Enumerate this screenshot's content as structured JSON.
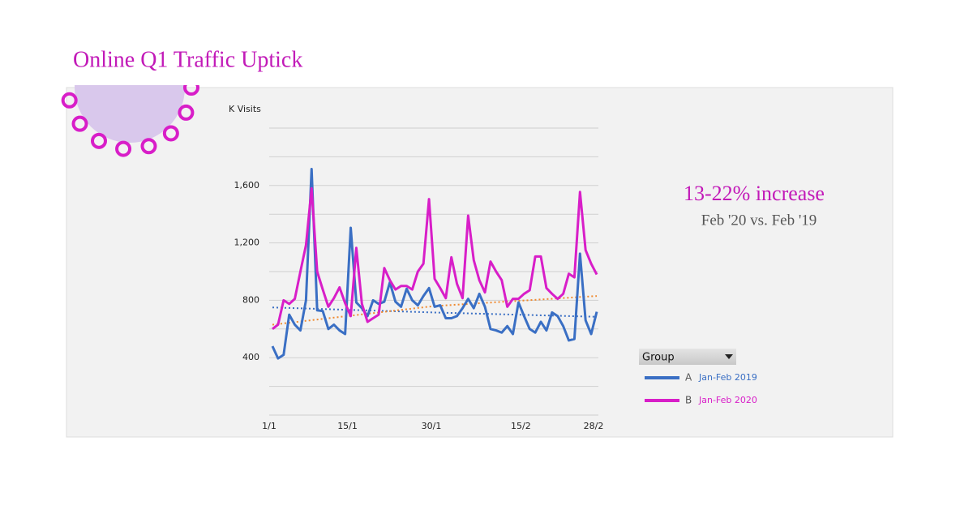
{
  "title": "Online Q1 Traffic Uptick",
  "chart_data": {
    "type": "line",
    "y_label": "K Visits",
    "categories": [
      "1/1",
      null,
      null,
      null,
      null,
      null,
      null,
      null,
      null,
      null,
      null,
      null,
      null,
      null,
      "15/1",
      null,
      null,
      null,
      null,
      null,
      null,
      null,
      null,
      null,
      null,
      null,
      null,
      null,
      null,
      "30/1",
      null,
      null,
      null,
      null,
      null,
      null,
      null,
      null,
      null,
      null,
      null,
      null,
      null,
      null,
      null,
      "15/2",
      null,
      null,
      null,
      null,
      null,
      null,
      null,
      null,
      null,
      null,
      null,
      null,
      "28/2"
    ],
    "ylim": [
      0,
      2000
    ],
    "yticks": [
      400,
      800,
      {
        "value": 1200,
        "label": "1,200"
      },
      {
        "value": 1600,
        "label": "1,600"
      }
    ],
    "grid_lines": [
      0,
      200,
      400,
      600,
      800,
      1000,
      1200,
      1400,
      1600,
      1800,
      2000
    ],
    "series": [
      {
        "name": "Jan-Feb 2019",
        "key": "A",
        "color": "#3a6fc4",
        "values": [
          480,
          395,
          420,
          700,
          630,
          590,
          800,
          1715,
          730,
          725,
          600,
          630,
          590,
          565,
          1305,
          785,
          745,
          690,
          800,
          775,
          790,
          925,
          790,
          755,
          880,
          800,
          765,
          830,
          885,
          755,
          765,
          675,
          675,
          690,
          745,
          810,
          745,
          845,
          755,
          600,
          590,
          575,
          620,
          565,
          785,
          690,
          600,
          575,
          650,
          590,
          715,
          690,
          620,
          520,
          530,
          1125,
          660,
          565,
          720
        ]
      },
      {
        "name": "Jan-Feb 2020",
        "key": "B",
        "color": "#d81ec8",
        "values": [
          600,
          630,
          800,
          775,
          810,
          1000,
          1185,
          1580,
          1000,
          875,
          755,
          815,
          890,
          780,
          690,
          1165,
          775,
          650,
          675,
          700,
          1025,
          940,
          875,
          900,
          900,
          875,
          1000,
          1055,
          1505,
          950,
          885,
          815,
          1100,
          915,
          815,
          1390,
          1080,
          940,
          855,
          1070,
          1000,
          940,
          755,
          810,
          810,
          845,
          870,
          1105,
          1105,
          885,
          845,
          810,
          845,
          985,
          960,
          1555,
          1150,
          1055,
          980
        ]
      }
    ],
    "trendlines": [
      {
        "color": "#3a6fc4",
        "at": [
          0,
          29,
          58
        ],
        "values": [
          750,
          715,
          685
        ]
      },
      {
        "color": "#f08a30",
        "at": [
          0,
          29,
          58
        ],
        "values": [
          630,
          760,
          830
        ]
      }
    ],
    "legend_title": "Group",
    "annotations": [
      "13-22% increase",
      "Feb '20 vs. Feb '19"
    ]
  }
}
